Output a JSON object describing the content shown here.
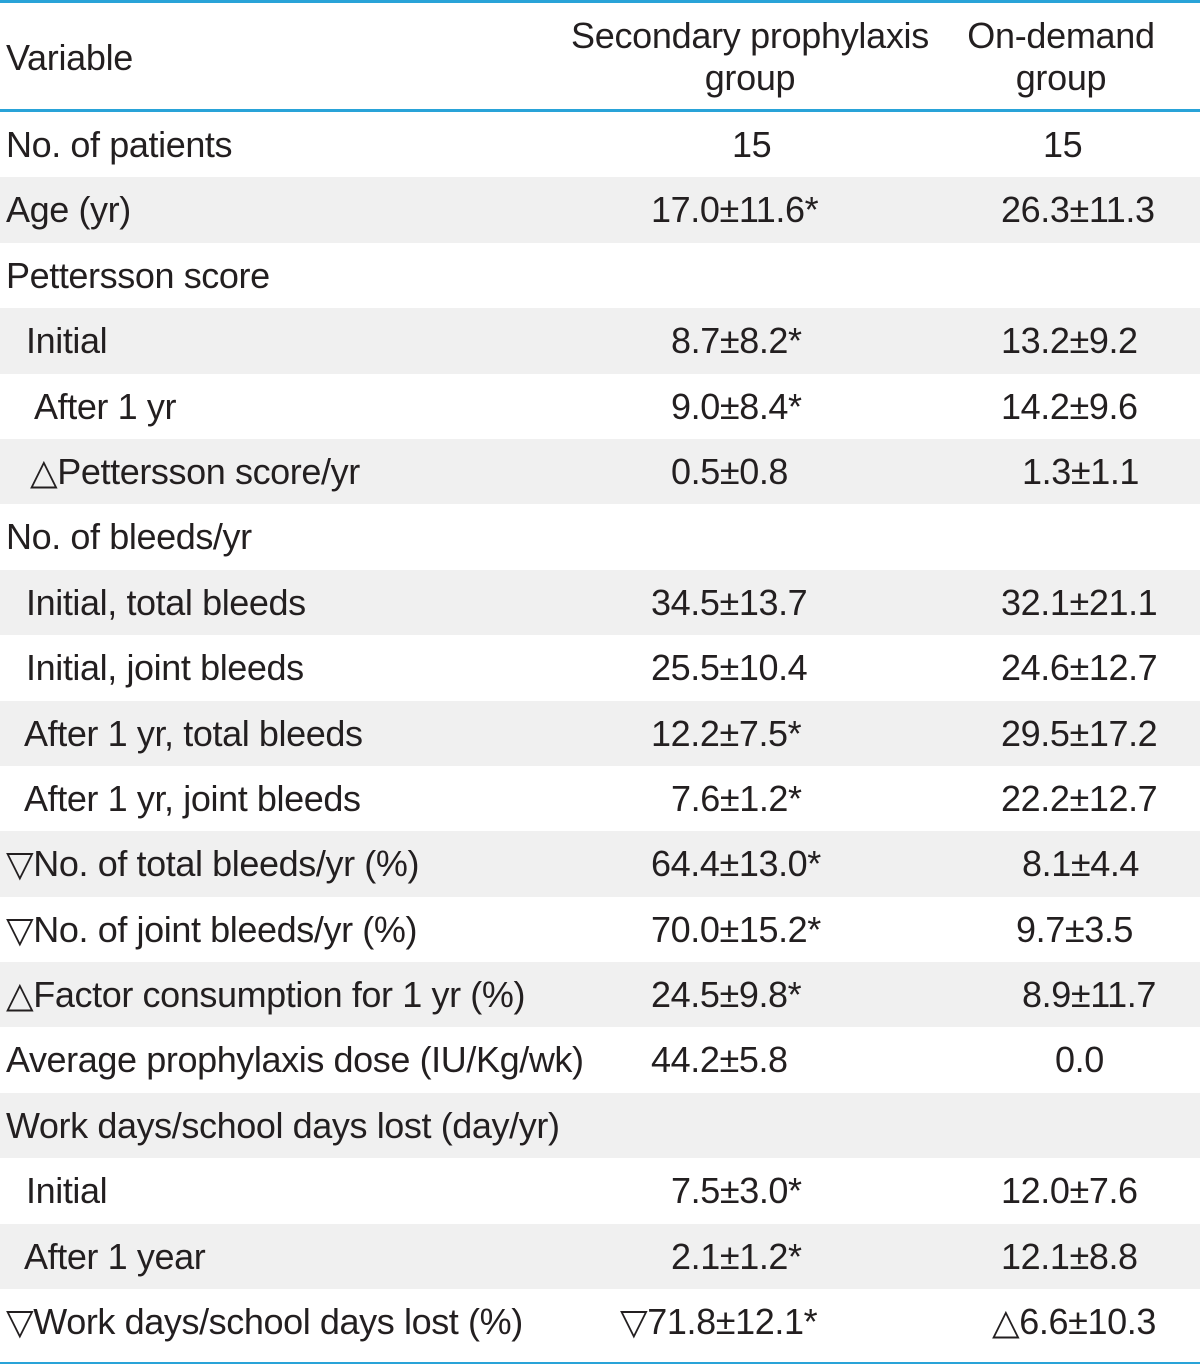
{
  "header": {
    "variable": "Variable",
    "col1_line1": "Secondary prophylaxis",
    "col1_line2": "group",
    "col2_line1": "On-demand",
    "col2_line2": "group"
  },
  "rows": [
    {
      "label": "No. of patients",
      "v1": "15",
      "v2": "15"
    },
    {
      "label": "Age (yr)",
      "v1": "17.0±11.6*",
      "v2": "26.3±11.3"
    },
    {
      "label": "Pettersson score",
      "v1": "",
      "v2": ""
    },
    {
      "label": "Initial",
      "v1": "8.7±8.2*",
      "v2": "13.2±9.2"
    },
    {
      "label": "After 1 yr",
      "v1": "9.0±8.4*",
      "v2": "14.2±9.6"
    },
    {
      "label": "△Pettersson score/yr",
      "v1": "0.5±0.8",
      "v2": "1.3±1.1"
    },
    {
      "label": "No. of bleeds/yr",
      "v1": "",
      "v2": ""
    },
    {
      "label": "Initial, total bleeds",
      "v1": "34.5±13.7",
      "v2": "32.1±21.1"
    },
    {
      "label": "Initial, joint bleeds",
      "v1": "25.5±10.4",
      "v2": "24.6±12.7"
    },
    {
      "label": "After 1 yr, total bleeds",
      "v1": "12.2±7.5*",
      "v2": "29.5±17.2"
    },
    {
      "label": "After 1 yr, joint bleeds",
      "v1": "7.6±1.2*",
      "v2": "22.2±12.7"
    },
    {
      "label": "▽No. of total bleeds/yr (%)",
      "v1": "64.4±13.0*",
      "v2": "8.1±4.4"
    },
    {
      "label": "▽No. of joint bleeds/yr (%)",
      "v1": "70.0±15.2*",
      "v2": "9.7±3.5"
    },
    {
      "label": "△Factor consumption for 1 yr (%)",
      "v1": "24.5±9.8*",
      "v2": "8.9±11.7"
    },
    {
      "label": "Average prophylaxis dose (IU/Kg/wk)",
      "v1": "44.2±5.8",
      "v2": "0.0"
    },
    {
      "label": "Work days/school days lost (day/yr)",
      "v1": "",
      "v2": ""
    },
    {
      "label": "Initial",
      "v1": "7.5±3.0*",
      "v2": "12.0±7.6"
    },
    {
      "label": "After 1 year",
      "v1": "2.1±1.2*",
      "v2": "12.1±8.8"
    },
    {
      "label": "▽Work days/school days lost (%)",
      "v1": "▽71.8±12.1*",
      "v2": "△6.6±10.3"
    }
  ]
}
